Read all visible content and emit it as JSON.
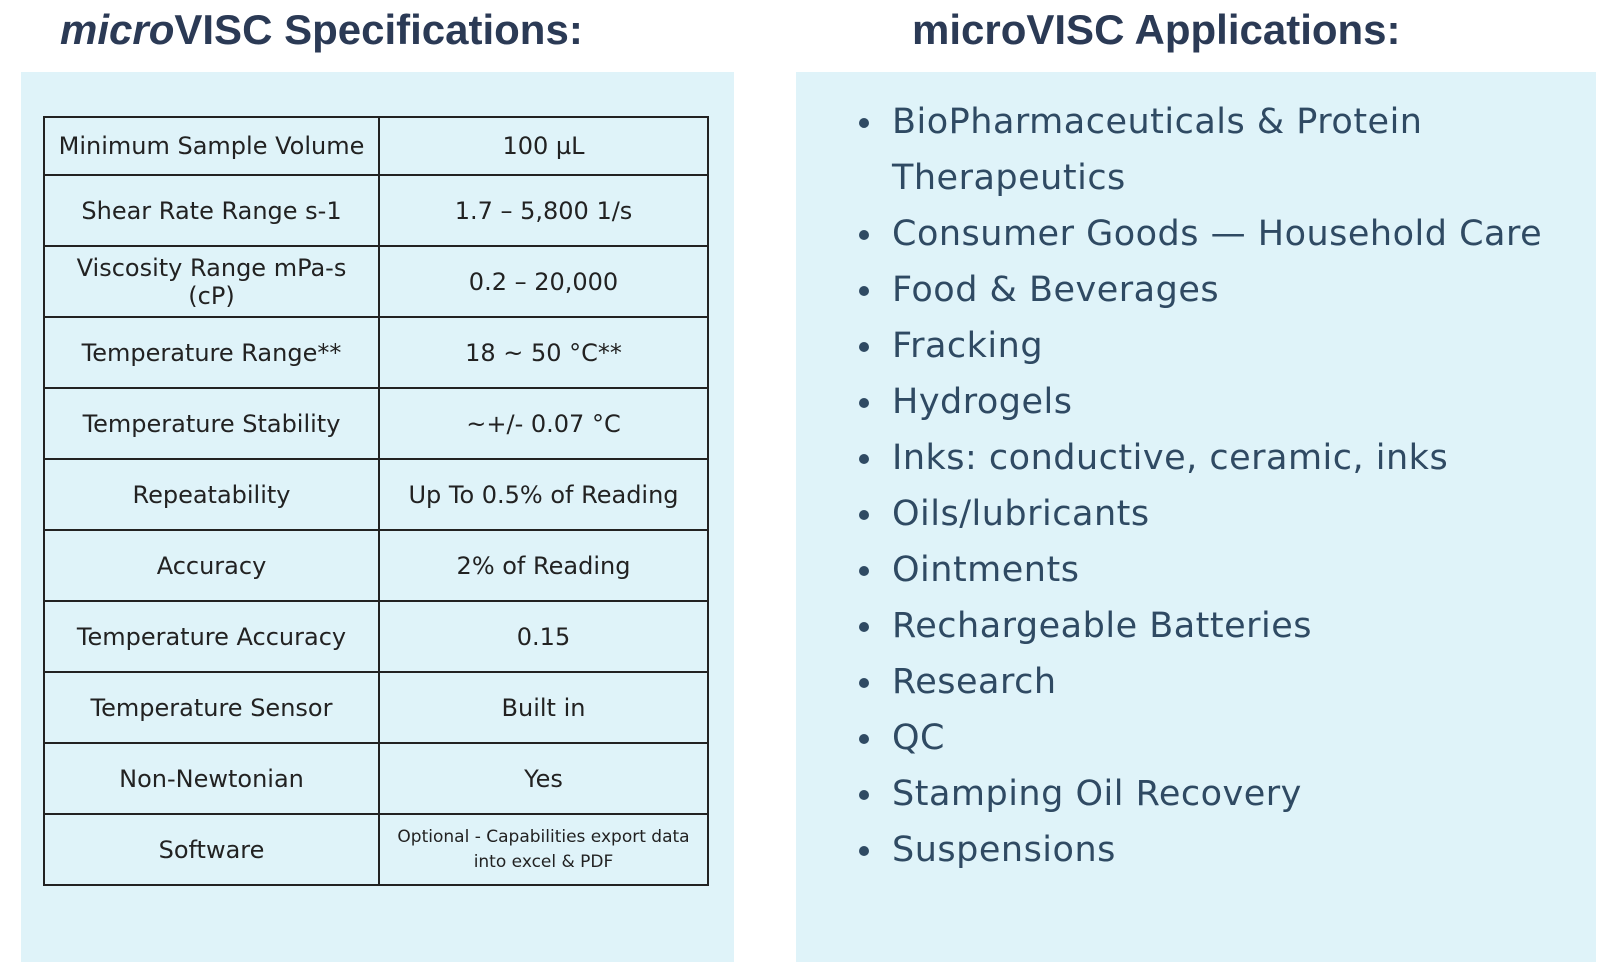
{
  "left": {
    "title_italic": "micro",
    "title_rest": "VISC Specifications:",
    "table": {
      "rows": [
        [
          "Minimum Sample Volume",
          "100 µL"
        ],
        [
          "Shear Rate Range s-1",
          "1.7 – 5,800 1/s"
        ],
        [
          "Viscosity Range mPa-s (cP)",
          "0.2 – 20,000"
        ],
        [
          "Temperature Range**",
          "18 ~ 50 °C**"
        ],
        [
          "Temperature Stability",
          "~+/- 0.07 °C"
        ],
        [
          "Repeatability",
          "Up To 0.5% of Reading"
        ],
        [
          "Accuracy",
          "2% of Reading"
        ],
        [
          "Temperature Accuracy",
          "0.15"
        ],
        [
          "Temperature Sensor",
          "Built in"
        ],
        [
          "Non-Newtonian",
          "Yes"
        ],
        [
          "Software",
          "Optional - Capabilities export data into excel & PDF"
        ]
      ]
    }
  },
  "right": {
    "title": "microVISC Applications:",
    "items": [
      "BioPharmaceuticals & Protein Therapeutics",
      "Consumer Goods — Household Care",
      "Food & Beverages",
      "Fracking",
      "Hydrogels",
      "Inks: conductive, ceramic, inks",
      "Oils/lubricants",
      "Ointments",
      "Rechargeable Batteries",
      "Research",
      "QC",
      "Stamping Oil Recovery",
      "Suspensions"
    ]
  }
}
